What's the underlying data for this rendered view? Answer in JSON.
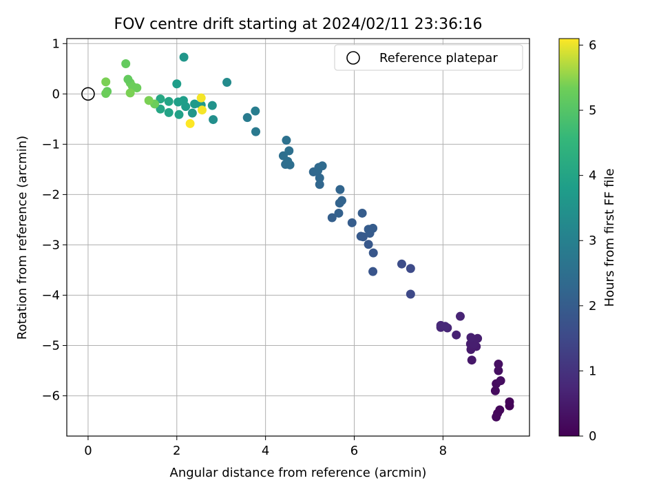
{
  "chart_data": {
    "type": "scatter",
    "title": "FOV centre drift starting at 2024/02/11 23:36:16",
    "xlabel": "Angular distance from reference (arcmin)",
    "ylabel": "Rotation from reference (arcmin)",
    "xlim": [
      -0.48,
      9.95
    ],
    "ylim": [
      -6.8,
      1.1
    ],
    "xticks": [
      0,
      2,
      4,
      6,
      8
    ],
    "yticks": [
      1,
      0,
      -1,
      -2,
      -3,
      -4,
      -5,
      -6
    ],
    "grid": true,
    "legend": {
      "placement": "top-right",
      "entries": [
        "Reference platepar"
      ]
    },
    "reference_point": {
      "x": 0,
      "y": 0
    },
    "colorbar": {
      "label": "Hours from first FF file",
      "range": [
        0,
        6.1
      ],
      "ticks": [
        0,
        1,
        2,
        3,
        4,
        5,
        6
      ],
      "colormap": "viridis"
    },
    "points": [
      {
        "x": 9.5,
        "y": -6.2,
        "c": 0.05
      },
      {
        "x": 9.5,
        "y": -6.12,
        "c": 0.08
      },
      {
        "x": 9.23,
        "y": -6.35,
        "c": 0.1
      },
      {
        "x": 9.28,
        "y": -6.28,
        "c": 0.12
      },
      {
        "x": 9.2,
        "y": -6.42,
        "c": 0.15
      },
      {
        "x": 9.18,
        "y": -5.9,
        "c": 0.2
      },
      {
        "x": 9.2,
        "y": -5.76,
        "c": 0.22
      },
      {
        "x": 9.3,
        "y": -5.7,
        "c": 0.25
      },
      {
        "x": 9.25,
        "y": -5.5,
        "c": 0.28
      },
      {
        "x": 9.25,
        "y": -5.37,
        "c": 0.3
      },
      {
        "x": 8.65,
        "y": -5.29,
        "c": 0.45
      },
      {
        "x": 8.63,
        "y": -5.08,
        "c": 0.5
      },
      {
        "x": 8.75,
        "y": -5.02,
        "c": 0.52
      },
      {
        "x": 8.62,
        "y": -4.97,
        "c": 0.55
      },
      {
        "x": 8.7,
        "y": -4.96,
        "c": 0.57
      },
      {
        "x": 8.78,
        "y": -4.86,
        "c": 0.58
      },
      {
        "x": 8.63,
        "y": -4.84,
        "c": 0.6
      },
      {
        "x": 8.3,
        "y": -4.79,
        "c": 0.65
      },
      {
        "x": 8.39,
        "y": -4.42,
        "c": 0.7
      },
      {
        "x": 8.1,
        "y": -4.65,
        "c": 0.72
      },
      {
        "x": 7.95,
        "y": -4.64,
        "c": 0.75
      },
      {
        "x": 7.95,
        "y": -4.6,
        "c": 0.78
      },
      {
        "x": 8.05,
        "y": -4.62,
        "c": 0.8
      },
      {
        "x": 7.27,
        "y": -3.98,
        "c": 1.5
      },
      {
        "x": 7.27,
        "y": -3.47,
        "c": 1.55
      },
      {
        "x": 7.07,
        "y": -3.38,
        "c": 1.6
      },
      {
        "x": 6.42,
        "y": -3.53,
        "c": 1.8
      },
      {
        "x": 6.43,
        "y": -3.16,
        "c": 1.85
      },
      {
        "x": 6.32,
        "y": -2.99,
        "c": 1.88
      },
      {
        "x": 6.2,
        "y": -2.84,
        "c": 1.9
      },
      {
        "x": 6.15,
        "y": -2.83,
        "c": 1.92
      },
      {
        "x": 6.35,
        "y": -2.77,
        "c": 1.95
      },
      {
        "x": 6.32,
        "y": -2.69,
        "c": 1.97
      },
      {
        "x": 6.42,
        "y": -2.67,
        "c": 1.98
      },
      {
        "x": 5.95,
        "y": -2.56,
        "c": 2.0
      },
      {
        "x": 6.18,
        "y": -2.37,
        "c": 2.0
      },
      {
        "x": 5.5,
        "y": -2.46,
        "c": 2.05
      },
      {
        "x": 5.65,
        "y": -2.37,
        "c": 2.1
      },
      {
        "x": 5.67,
        "y": -2.17,
        "c": 2.15
      },
      {
        "x": 5.72,
        "y": -2.12,
        "c": 2.18
      },
      {
        "x": 5.68,
        "y": -1.9,
        "c": 2.2
      },
      {
        "x": 5.22,
        "y": -1.8,
        "c": 2.25
      },
      {
        "x": 5.22,
        "y": -1.67,
        "c": 2.28
      },
      {
        "x": 5.08,
        "y": -1.55,
        "c": 2.3
      },
      {
        "x": 5.18,
        "y": -1.52,
        "c": 2.32
      },
      {
        "x": 5.2,
        "y": -1.46,
        "c": 2.35
      },
      {
        "x": 5.28,
        "y": -1.43,
        "c": 2.37
      },
      {
        "x": 4.45,
        "y": -1.4,
        "c": 2.45
      },
      {
        "x": 4.55,
        "y": -1.41,
        "c": 2.47
      },
      {
        "x": 4.5,
        "y": -1.34,
        "c": 2.48
      },
      {
        "x": 4.4,
        "y": -1.23,
        "c": 2.5
      },
      {
        "x": 4.53,
        "y": -1.13,
        "c": 2.52
      },
      {
        "x": 4.47,
        "y": -0.92,
        "c": 2.55
      },
      {
        "x": 3.78,
        "y": -0.75,
        "c": 2.8
      },
      {
        "x": 3.59,
        "y": -0.47,
        "c": 2.85
      },
      {
        "x": 3.77,
        "y": -0.34,
        "c": 2.9
      },
      {
        "x": 3.13,
        "y": 0.23,
        "c": 3.3
      },
      {
        "x": 2.82,
        "y": -0.51,
        "c": 3.4
      },
      {
        "x": 2.8,
        "y": -0.23,
        "c": 3.5
      },
      {
        "x": 2.16,
        "y": 0.73,
        "c": 3.6
      },
      {
        "x": 2.35,
        "y": -0.38,
        "c": 3.6
      },
      {
        "x": 2.4,
        "y": -0.2,
        "c": 3.7
      },
      {
        "x": 2.55,
        "y": -0.22,
        "c": 3.7
      },
      {
        "x": 2.2,
        "y": -0.25,
        "c": 3.75
      },
      {
        "x": 2.15,
        "y": -0.13,
        "c": 3.8
      },
      {
        "x": 2.0,
        "y": 0.2,
        "c": 3.8
      },
      {
        "x": 2.03,
        "y": -0.16,
        "c": 3.85
      },
      {
        "x": 2.05,
        "y": -0.41,
        "c": 3.9
      },
      {
        "x": 1.82,
        "y": -0.37,
        "c": 3.95
      },
      {
        "x": 1.82,
        "y": -0.15,
        "c": 4.0
      },
      {
        "x": 1.63,
        "y": -0.3,
        "c": 4.05
      },
      {
        "x": 1.63,
        "y": -0.1,
        "c": 4.1
      },
      {
        "x": 1.5,
        "y": -0.2,
        "c": 5.3
      },
      {
        "x": 1.37,
        "y": -0.13,
        "c": 5.4
      },
      {
        "x": 1.1,
        "y": 0.12,
        "c": 5.3
      },
      {
        "x": 1.0,
        "y": 0.15,
        "c": 5.3
      },
      {
        "x": 0.95,
        "y": 0.02,
        "c": 5.4
      },
      {
        "x": 0.95,
        "y": 0.22,
        "c": 5.3
      },
      {
        "x": 0.9,
        "y": 0.29,
        "c": 5.2
      },
      {
        "x": 0.85,
        "y": 0.6,
        "c": 5.2
      },
      {
        "x": 0.43,
        "y": 0.05,
        "c": 5.2
      },
      {
        "x": 0.4,
        "y": 0.01,
        "c": 5.3
      },
      {
        "x": 0.4,
        "y": 0.24,
        "c": 5.4
      },
      {
        "x": 2.55,
        "y": -0.08,
        "c": 6.05
      },
      {
        "x": 2.57,
        "y": -0.32,
        "c": 6.05
      },
      {
        "x": 2.3,
        "y": -0.59,
        "c": 6.1
      }
    ]
  }
}
